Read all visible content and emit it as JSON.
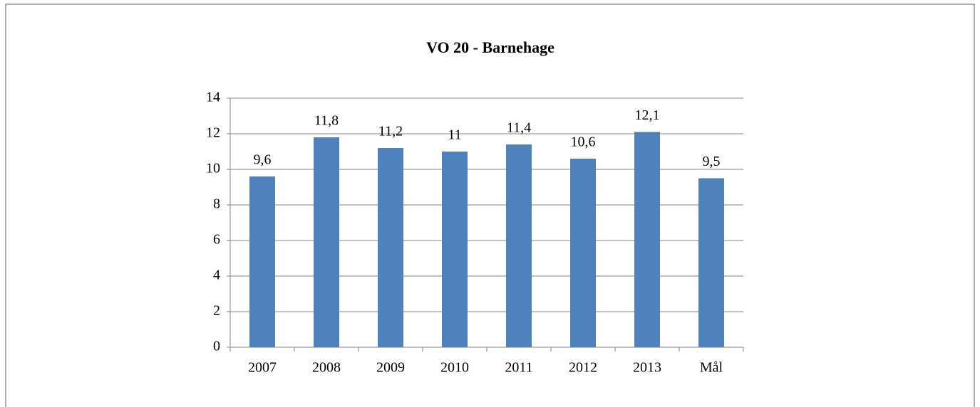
{
  "chart_data": {
    "type": "bar",
    "title": "VO 20 - Barnehage",
    "categories": [
      "2007",
      "2008",
      "2009",
      "2010",
      "2011",
      "2012",
      "2013",
      "Mål"
    ],
    "values": [
      9.6,
      11.8,
      11.2,
      11,
      11.4,
      10.6,
      12.1,
      9.5
    ],
    "value_labels": [
      "9,6",
      "11,8",
      "11,2",
      "11",
      "11,4",
      "10,6",
      "12,1",
      "9,5"
    ],
    "color": "#4f81bd",
    "ylim": [
      0,
      14
    ],
    "yticks": [
      0,
      2,
      4,
      6,
      8,
      10,
      12,
      14
    ],
    "grid": true
  }
}
